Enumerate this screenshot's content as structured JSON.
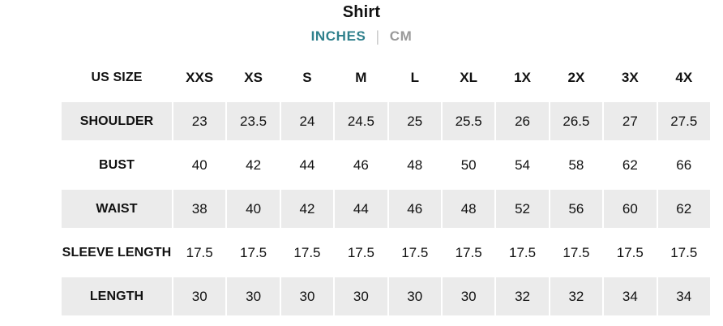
{
  "header": {
    "title": "Shirt",
    "unit_tabs": {
      "tabs": [
        {
          "label": "INCHES",
          "active": true
        },
        {
          "label": "CM",
          "active": false
        }
      ],
      "separator": "|",
      "active_color": "#2f808c",
      "inactive_color": "#999999"
    }
  },
  "table": {
    "row_header_label": "US SIZE",
    "columns": [
      "XXS",
      "XS",
      "S",
      "M",
      "L",
      "XL",
      "1X",
      "2X",
      "3X",
      "4X"
    ],
    "rows": [
      {
        "label": "SHOULDER",
        "shaded": true,
        "values": [
          "23",
          "23.5",
          "24",
          "24.5",
          "25",
          "25.5",
          "26",
          "26.5",
          "27",
          "27.5"
        ]
      },
      {
        "label": "BUST",
        "shaded": false,
        "values": [
          "40",
          "42",
          "44",
          "46",
          "48",
          "50",
          "54",
          "58",
          "62",
          "66"
        ]
      },
      {
        "label": "WAIST",
        "shaded": true,
        "values": [
          "38",
          "40",
          "42",
          "44",
          "46",
          "48",
          "52",
          "56",
          "60",
          "62"
        ]
      },
      {
        "label": "SLEEVE LENGTH",
        "shaded": false,
        "values": [
          "17.5",
          "17.5",
          "17.5",
          "17.5",
          "17.5",
          "17.5",
          "17.5",
          "17.5",
          "17.5",
          "17.5"
        ]
      },
      {
        "label": "LENGTH",
        "shaded": true,
        "values": [
          "30",
          "30",
          "30",
          "30",
          "30",
          "30",
          "32",
          "32",
          "34",
          "34"
        ]
      }
    ],
    "shaded_row_color": "#ebebeb"
  }
}
